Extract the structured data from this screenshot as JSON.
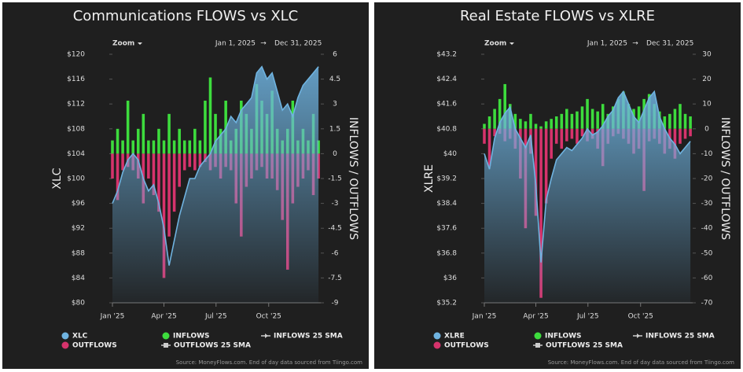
{
  "chart_data": [
    {
      "type": "combo",
      "title": "Communications FLOWS vs XLC",
      "zoom_label": "Zoom",
      "range_start": "Jan 1, 2025",
      "range_end": "Dec 31, 2025",
      "ylabel": "XLC",
      "y2label": "INFLOWS / OUTFLOWS",
      "x": [
        0,
        9,
        18,
        27,
        36,
        45,
        54,
        63,
        72,
        81,
        90,
        99,
        108,
        117,
        126,
        135,
        144,
        153,
        162,
        171,
        180,
        189,
        198,
        207,
        216,
        225,
        234,
        243,
        252,
        261,
        270,
        279,
        288,
        297,
        306,
        315,
        324,
        333,
        342,
        351,
        360
      ],
      "xlim": [
        0,
        364
      ],
      "xticks": [
        {
          "value": 0,
          "label": "Jan '25"
        },
        {
          "value": 90,
          "label": "Apr '25"
        },
        {
          "value": 181,
          "label": "Jul '25"
        },
        {
          "value": 273,
          "label": "Oct '25"
        }
      ],
      "ylim": [
        80,
        120
      ],
      "yticks": [
        {
          "value": 80,
          "label": "$80"
        },
        {
          "value": 84,
          "label": "$84"
        },
        {
          "value": 88,
          "label": "$88"
        },
        {
          "value": 92,
          "label": "$92"
        },
        {
          "value": 96,
          "label": "$96"
        },
        {
          "value": 100,
          "label": "$100"
        },
        {
          "value": 104,
          "label": "$104"
        },
        {
          "value": 108,
          "label": "$108"
        },
        {
          "value": 112,
          "label": "$112"
        },
        {
          "value": 116,
          "label": "$116"
        },
        {
          "value": 120,
          "label": "$120"
        }
      ],
      "y2lim": [
        -9,
        6
      ],
      "y2ticks": [
        -9,
        -7.5,
        -6,
        -4.5,
        -3,
        -1.5,
        0,
        1.5,
        3,
        4.5,
        6
      ],
      "series": [
        {
          "name": "XLC",
          "type": "area",
          "color": "#6fb3e0",
          "values": [
            96,
            98,
            101,
            103,
            104,
            103,
            100,
            98,
            99,
            96,
            92,
            86,
            90,
            94,
            97,
            100,
            100,
            102,
            103,
            104,
            106,
            107,
            108,
            110,
            109,
            111,
            112,
            113,
            117,
            118,
            116,
            117,
            114,
            111,
            112,
            110,
            113,
            115,
            116,
            117,
            118
          ]
        },
        {
          "name": "INFLOWS",
          "type": "bar",
          "axis": "y2",
          "color": "#3ddc3d",
          "values": [
            0.8,
            1.5,
            0.8,
            3.2,
            0.8,
            1.5,
            2.4,
            0.8,
            0.8,
            1.5,
            0.8,
            2.4,
            0.8,
            1.5,
            0.8,
            0.8,
            1.5,
            0.8,
            3.2,
            4.6,
            2.4,
            1.5,
            3.2,
            0.8,
            1.5,
            3.2,
            2.4,
            1.5,
            4.2,
            3.2,
            2.4,
            3.8,
            1.5,
            0.8,
            1.5,
            3.2,
            0.8,
            1.5,
            0.8,
            2.4,
            0.8
          ]
        },
        {
          "name": "OUTFLOWS",
          "type": "bar",
          "axis": "y2",
          "color": "#d6336c",
          "values": [
            -1.5,
            -2.8,
            -1,
            -0.8,
            -1,
            -1.5,
            -3,
            -1.5,
            -2.5,
            -3.5,
            -7.5,
            -5,
            -3.5,
            -2,
            -1,
            -0.8,
            -1,
            -0.8,
            -0.5,
            -1,
            -0.8,
            -1.5,
            -0.8,
            -1,
            -3,
            -5,
            -2,
            -1.5,
            -1,
            -0.8,
            -1.5,
            -1.5,
            -2.2,
            -4,
            -7,
            -3,
            -2,
            -1.5,
            -1,
            -2.5,
            -1.5
          ]
        }
      ],
      "legend_extra": [
        "INFLOWS 25 SMA",
        "OUTFLOWS 25 SMA"
      ],
      "source": "Source: MoneyFlows.com. End of day data sourced from Tiingo.com"
    },
    {
      "type": "combo",
      "title": "Real Estate FLOWS vs XLRE",
      "zoom_label": "Zoom",
      "range_start": "Jan 1, 2025",
      "range_end": "Dec 31, 2025",
      "ylabel": "XLRE",
      "y2label": "INFLOWS / OUTFLOWS",
      "x": [
        0,
        9,
        18,
        27,
        36,
        45,
        54,
        63,
        72,
        81,
        90,
        99,
        108,
        117,
        126,
        135,
        144,
        153,
        162,
        171,
        180,
        189,
        198,
        207,
        216,
        225,
        234,
        243,
        252,
        261,
        270,
        279,
        288,
        297,
        306,
        315,
        324,
        333,
        342,
        351,
        360
      ],
      "xlim": [
        0,
        364
      ],
      "xticks": [
        {
          "value": 0,
          "label": "Jan '25"
        },
        {
          "value": 90,
          "label": "Apr '25"
        },
        {
          "value": 181,
          "label": "Jul '25"
        },
        {
          "value": 273,
          "label": "Oct '25"
        }
      ],
      "ylim": [
        35.2,
        43.2
      ],
      "yticks": [
        {
          "value": 35.2,
          "label": "$35.2"
        },
        {
          "value": 36,
          "label": "$36"
        },
        {
          "value": 36.8,
          "label": "$36.8"
        },
        {
          "value": 37.6,
          "label": "$37.6"
        },
        {
          "value": 38.4,
          "label": "$38.4"
        },
        {
          "value": 39.2,
          "label": "$39.2"
        },
        {
          "value": 40,
          "label": "$40"
        },
        {
          "value": 40.8,
          "label": "$40.8"
        },
        {
          "value": 41.6,
          "label": "$41.6"
        },
        {
          "value": 42.4,
          "label": "$42.4"
        },
        {
          "value": 43.2,
          "label": "$43.2"
        }
      ],
      "y2lim": [
        -70,
        30
      ],
      "y2ticks": [
        -70,
        -60,
        -50,
        -40,
        -30,
        -20,
        -10,
        0,
        10,
        20,
        30
      ],
      "series": [
        {
          "name": "XLRE",
          "type": "area",
          "color": "#6fb3e0",
          "values": [
            40,
            39.5,
            40.5,
            41,
            41.3,
            41.5,
            40.8,
            40.5,
            40.2,
            40.6,
            39,
            36.5,
            38.5,
            39.2,
            39.8,
            40,
            40.2,
            40.1,
            40.3,
            40.5,
            40.8,
            40.6,
            40.7,
            40.9,
            41.2,
            41.4,
            41.8,
            42,
            41.6,
            41.2,
            41,
            41.4,
            41.8,
            42,
            41.2,
            40.8,
            40.5,
            40.3,
            40,
            40.2,
            40.4
          ]
        },
        {
          "name": "INFLOWS",
          "type": "bar",
          "axis": "y2",
          "color": "#3ddc3d",
          "values": [
            2,
            5,
            8,
            12,
            18,
            10,
            6,
            4,
            3,
            6,
            2,
            1,
            3,
            4,
            5,
            6,
            8,
            6,
            7,
            9,
            12,
            8,
            7,
            10,
            6,
            9,
            12,
            15,
            10,
            8,
            9,
            12,
            14,
            10,
            7,
            5,
            6,
            8,
            10,
            6,
            5
          ]
        },
        {
          "name": "OUTFLOWS",
          "type": "bar",
          "axis": "y2",
          "color": "#d6336c",
          "values": [
            -6,
            -15,
            -3,
            -2,
            -5,
            -4,
            -8,
            -20,
            -40,
            -10,
            -35,
            -68,
            -30,
            -12,
            -6,
            -8,
            -5,
            -4,
            -6,
            -3,
            -5,
            -4,
            -8,
            -15,
            -6,
            -3,
            -2,
            -4,
            -6,
            -10,
            -8,
            -25,
            -5,
            -4,
            -6,
            -10,
            -8,
            -12,
            -6,
            -4,
            -3
          ]
        }
      ],
      "legend_extra": [
        "INFLOWS 25 SMA",
        "OUTFLOWS 25 SMA"
      ],
      "source": "Source: MoneyFlows.com. End of day data sourced from Tiingo.com"
    }
  ]
}
